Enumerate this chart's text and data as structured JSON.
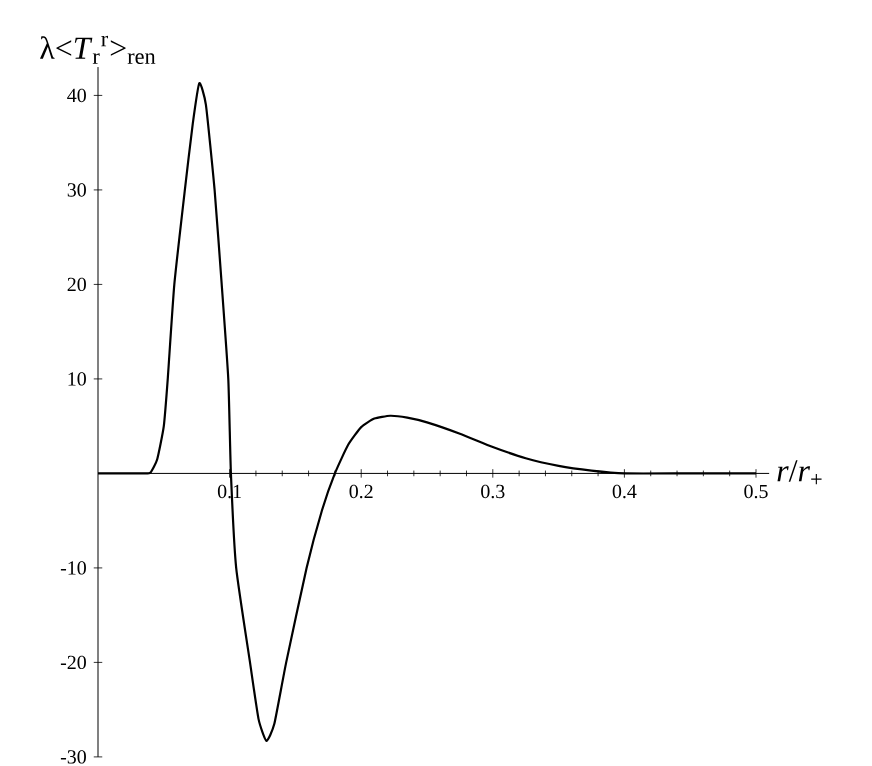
{
  "chart_data": {
    "type": "line",
    "xlabel": "*r*/*r*$_{+}$",
    "ylabel": "λ<*T*$_{r}$$^{r}$>$_{ren}$",
    "x": [
      0,
      0.02,
      0.035,
      0.04,
      0.045,
      0.05,
      0.053,
      0.058,
      0.066,
      0.072,
      0.077,
      0.082,
      0.0886,
      0.094,
      0.099,
      0.101,
      0.105,
      0.1155,
      0.122,
      0.128,
      0.134,
      0.143,
      0.1585,
      0.17,
      0.18,
      0.19,
      0.2,
      0.21,
      0.222,
      0.235,
      0.25,
      0.275,
      0.3,
      0.325,
      0.35,
      0.375,
      0.4,
      0.45,
      0.5
    ],
    "series": [
      {
        "color": "#000000",
        "values": [
          0,
          0,
          0,
          0.1,
          1.5,
          5,
          10,
          20,
          30,
          37,
          41.3,
          39,
          30,
          20,
          10,
          0,
          -10,
          -20,
          -26,
          -28.3,
          -26.5,
          -20,
          -10,
          -4,
          0,
          3,
          4.9,
          5.8,
          6.1,
          5.9,
          5.4,
          4.2,
          2.8,
          1.6,
          0.8,
          0.3,
          0,
          0,
          0
        ]
      }
    ],
    "xlim": [
      0,
      0.51
    ],
    "ylim": [
      -30,
      43
    ],
    "xticks": [
      0.1,
      0.2,
      0.3,
      0.4,
      0.5
    ],
    "yticks": [
      -30,
      -20,
      -10,
      10,
      20,
      30,
      40
    ],
    "marker": "none",
    "line_style": "solid"
  }
}
